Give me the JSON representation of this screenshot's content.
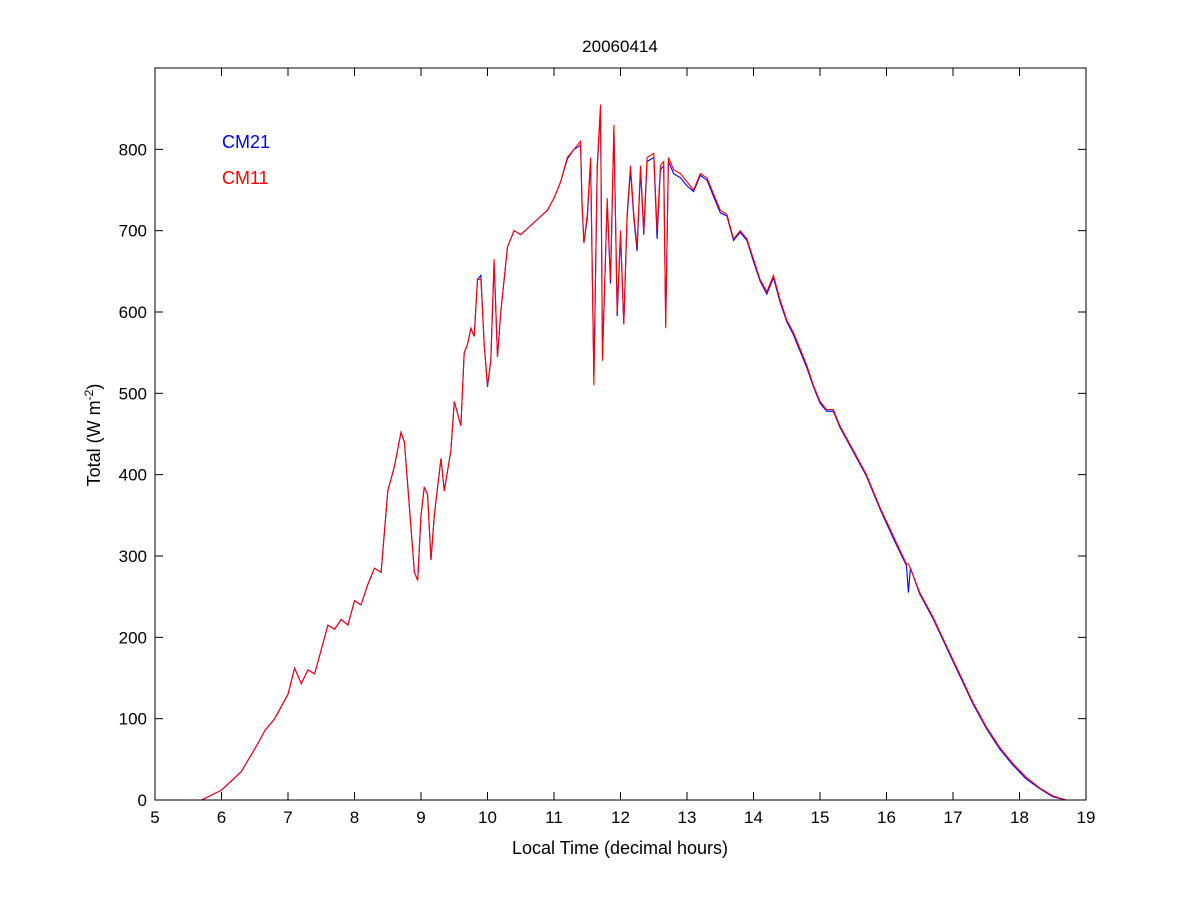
{
  "chart_data": {
    "type": "line",
    "title": "20060414",
    "xlabel": "Local Time (decimal hours)",
    "ylabel": "Total (W m",
    "ylabel_sup": "-2",
    "ylabel_end": ")",
    "xlim": [
      5,
      19
    ],
    "ylim": [
      0,
      900
    ],
    "xticks": [
      5,
      6,
      7,
      8,
      9,
      10,
      11,
      12,
      13,
      14,
      15,
      16,
      17,
      18,
      19
    ],
    "yticks": [
      0,
      100,
      200,
      300,
      400,
      500,
      600,
      700,
      800
    ],
    "grid": false,
    "legend_placement": "top-left",
    "x": [
      5.7,
      6.0,
      6.3,
      6.55,
      6.65,
      6.8,
      7.0,
      7.1,
      7.2,
      7.3,
      7.4,
      7.5,
      7.6,
      7.7,
      7.8,
      7.9,
      8.0,
      8.1,
      8.2,
      8.3,
      8.4,
      8.5,
      8.6,
      8.7,
      8.75,
      8.9,
      8.95,
      9.0,
      9.05,
      9.1,
      9.15,
      9.2,
      9.3,
      9.35,
      9.45,
      9.5,
      9.6,
      9.65,
      9.7,
      9.75,
      9.8,
      9.85,
      9.9,
      9.95,
      10.0,
      10.05,
      10.1,
      10.15,
      10.2,
      10.3,
      10.4,
      10.5,
      10.7,
      10.9,
      11.0,
      11.1,
      11.2,
      11.3,
      11.4,
      11.42,
      11.45,
      11.5,
      11.55,
      11.6,
      11.65,
      11.7,
      11.73,
      11.8,
      11.85,
      11.9,
      11.95,
      12.0,
      12.05,
      12.1,
      12.15,
      12.2,
      12.25,
      12.3,
      12.35,
      12.4,
      12.5,
      12.55,
      12.6,
      12.65,
      12.68,
      12.72,
      12.8,
      12.9,
      13.0,
      13.1,
      13.2,
      13.3,
      13.4,
      13.5,
      13.6,
      13.7,
      13.8,
      13.9,
      14.0,
      14.1,
      14.2,
      14.3,
      14.4,
      14.5,
      14.6,
      14.7,
      14.8,
      14.9,
      15.0,
      15.1,
      15.2,
      15.3,
      15.5,
      15.7,
      15.9,
      16.1,
      16.3,
      16.33,
      16.36,
      16.5,
      16.7,
      16.9,
      17.1,
      17.3,
      17.5,
      17.7,
      17.9,
      18.1,
      18.3,
      18.5,
      18.7
    ],
    "series": [
      {
        "name": "CM21",
        "color": "#0000ff",
        "values": [
          0,
          12,
          35,
          70,
          85,
          100,
          130,
          162,
          143,
          160,
          155,
          185,
          215,
          210,
          222,
          215,
          245,
          240,
          265,
          285,
          280,
          380,
          410,
          452,
          440,
          280,
          270,
          350,
          385,
          375,
          295,
          350,
          420,
          380,
          430,
          490,
          460,
          550,
          560,
          580,
          570,
          640,
          645,
          560,
          508,
          540,
          660,
          545,
          600,
          680,
          700,
          695,
          710,
          725,
          740,
          760,
          788,
          800,
          805,
          735,
          685,
          715,
          785,
          520,
          775,
          850,
          545,
          735,
          635,
          825,
          595,
          695,
          585,
          715,
          775,
          715,
          675,
          775,
          695,
          785,
          790,
          690,
          775,
          780,
          585,
          785,
          770,
          765,
          755,
          748,
          768,
          762,
          742,
          722,
          718,
          688,
          698,
          688,
          662,
          638,
          622,
          642,
          612,
          588,
          572,
          552,
          532,
          508,
          488,
          478,
          478,
          458,
          428,
          398,
          358,
          322,
          288,
          255,
          285,
          253,
          223,
          188,
          153,
          118,
          88,
          63,
          43,
          26,
          14,
          4,
          0
        ]
      },
      {
        "name": "CM11",
        "color": "#ff0000",
        "values": [
          0,
          12,
          35,
          70,
          85,
          100,
          130,
          162,
          143,
          160,
          155,
          185,
          215,
          210,
          222,
          215,
          245,
          240,
          265,
          285,
          280,
          380,
          410,
          452,
          440,
          280,
          270,
          350,
          385,
          375,
          295,
          350,
          420,
          380,
          430,
          490,
          460,
          550,
          560,
          580,
          570,
          640,
          640,
          560,
          510,
          540,
          665,
          545,
          600,
          680,
          700,
          695,
          710,
          725,
          740,
          760,
          790,
          800,
          810,
          740,
          685,
          720,
          790,
          510,
          780,
          855,
          540,
          740,
          640,
          830,
          600,
          700,
          585,
          720,
          780,
          720,
          680,
          780,
          700,
          790,
          795,
          700,
          780,
          785,
          580,
          790,
          775,
          770,
          760,
          750,
          770,
          765,
          745,
          725,
          720,
          690,
          700,
          690,
          665,
          640,
          625,
          645,
          615,
          590,
          575,
          555,
          535,
          510,
          490,
          480,
          480,
          460,
          430,
          400,
          360,
          325,
          290,
          290,
          285,
          255,
          225,
          190,
          155,
          120,
          90,
          65,
          45,
          28,
          15,
          5,
          0
        ]
      }
    ]
  }
}
